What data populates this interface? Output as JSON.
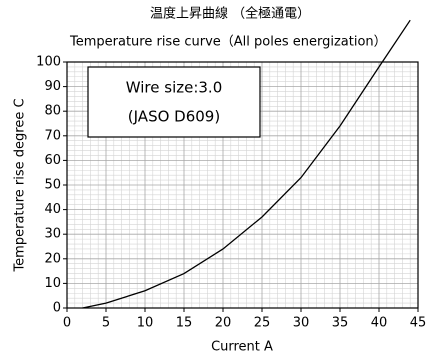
{
  "chart_data": {
    "type": "line",
    "title": "温度上昇曲線 （全極通電）",
    "subtitle": "Temperature rise curve（All poles energization）",
    "annotations": [
      "Wire size:3.0",
      "(JASO D609)"
    ],
    "x_label": "Current  A",
    "y_label": "Temperature rise  degree C",
    "series": [
      {
        "color": "#000000",
        "x": [
          2,
          5,
          10,
          15,
          20,
          25,
          30,
          35,
          40,
          44
        ],
        "values": [
          0,
          2,
          7,
          14,
          24,
          37,
          53,
          74,
          98,
          117
        ]
      }
    ],
    "xlim": [
      0,
      45
    ],
    "xticks": [
      0,
      5,
      10,
      15,
      20,
      25,
      30,
      35,
      40,
      45
    ],
    "ylim": [
      0,
      100
    ],
    "yticks": [
      0,
      10,
      20,
      30,
      40,
      50,
      60,
      70,
      80,
      90,
      100
    ],
    "grid": true
  }
}
